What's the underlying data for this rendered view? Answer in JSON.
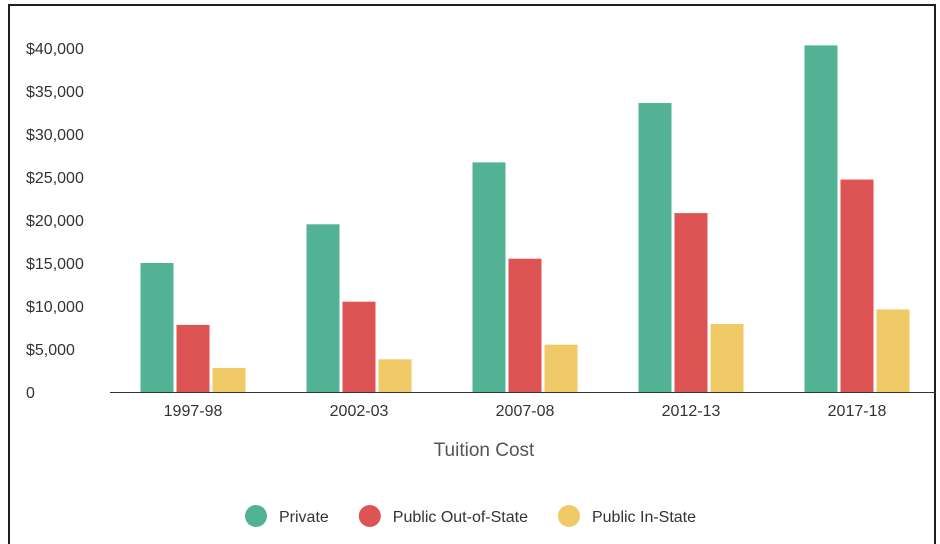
{
  "chart_data": {
    "type": "bar",
    "title": "",
    "xlabel": "Tuition Cost",
    "ylabel": "",
    "categories": [
      "1997-98",
      "2002-03",
      "2007-08",
      "2012-13",
      "2017-18"
    ],
    "series": [
      {
        "name": "Private",
        "color": "#52b394",
        "values": [
          15000,
          19500,
          26700,
          33600,
          40300
        ]
      },
      {
        "name": "Public Out-of-State",
        "color": "#de5353",
        "values": [
          7800,
          10500,
          15500,
          20800,
          24700
        ]
      },
      {
        "name": "Public In-State",
        "color": "#f0ca66",
        "values": [
          2800,
          3800,
          5500,
          7900,
          9600
        ]
      }
    ],
    "yticks": [
      {
        "value": 0,
        "label": "0"
      },
      {
        "value": 5000,
        "label": "$5,000"
      },
      {
        "value": 10000,
        "label": "$10,000"
      },
      {
        "value": 15000,
        "label": "$15,000"
      },
      {
        "value": 20000,
        "label": "$20,000"
      },
      {
        "value": 25000,
        "label": "$25,000"
      },
      {
        "value": 30000,
        "label": "$30,000"
      },
      {
        "value": 35000,
        "label": "$35,000"
      },
      {
        "value": 40000,
        "label": "$40,000"
      }
    ],
    "ylim": [
      0,
      40000
    ],
    "grid": false,
    "legend": "bottom"
  }
}
